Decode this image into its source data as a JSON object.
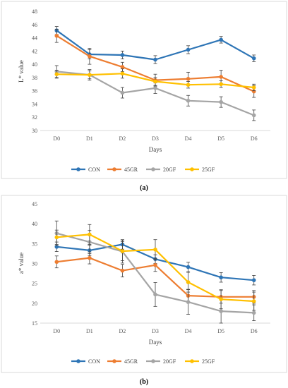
{
  "charts": [
    {
      "type": "line",
      "caption": "(a)",
      "x": [
        "D0",
        "D1",
        "D2",
        "D3",
        "D4",
        "D5",
        "D6"
      ],
      "xlabel": "Days",
      "ylabel": "L* value",
      "ylim": [
        30,
        48
      ],
      "yticks": [
        "30",
        "32",
        "34",
        "36",
        "38",
        "40",
        "42",
        "44",
        "46",
        "48"
      ],
      "grid": false,
      "legend": "bottom",
      "series": [
        {
          "name": "CON",
          "color": "#2e75b6",
          "values": [
            45.1,
            41.5,
            41.4,
            40.7,
            42.2,
            43.7,
            40.9
          ],
          "err": [
            0.6,
            0.7,
            0.6,
            0.6,
            0.6,
            0.5,
            0.5
          ]
        },
        {
          "name": "45GR",
          "color": "#ed7d31",
          "values": [
            44.3,
            41.2,
            39.6,
            37.6,
            37.8,
            38.1,
            35.9
          ],
          "err": [
            1.0,
            1.2,
            0.7,
            0.9,
            1.0,
            1.0,
            0.9
          ]
        },
        {
          "name": "20GF",
          "color": "#a5a5a5",
          "values": [
            38.9,
            38.4,
            35.7,
            36.4,
            34.5,
            34.3,
            32.3
          ],
          "err": [
            0.9,
            0.8,
            0.8,
            0.8,
            0.8,
            0.8,
            0.8
          ]
        },
        {
          "name": "25GF",
          "color": "#ffc000",
          "values": [
            38.5,
            38.4,
            38.6,
            37.4,
            36.9,
            37.0,
            36.5
          ],
          "err": [
            0.6,
            0.6,
            0.7,
            0.6,
            0.5,
            0.5,
            0.5
          ]
        }
      ]
    },
    {
      "type": "line",
      "caption": "(b)",
      "x": [
        "D0",
        "D1",
        "D2",
        "D3",
        "D4",
        "D5",
        "D6"
      ],
      "xlabel": "Days",
      "ylabel": "a* value",
      "ylim": [
        15,
        45
      ],
      "yticks": [
        "15",
        "20",
        "25",
        "30",
        "35",
        "40",
        "45"
      ],
      "grid": false,
      "legend": "bottom",
      "series": [
        {
          "name": "CON",
          "color": "#2e75b6",
          "values": [
            34.2,
            33.3,
            34.8,
            31.1,
            29.1,
            26.5,
            25.8
          ],
          "err": [
            1.2,
            1.3,
            1.2,
            1.1,
            1.2,
            1.2,
            1.2
          ]
        },
        {
          "name": "45GR",
          "color": "#ed7d31",
          "values": [
            30.4,
            31.4,
            28.2,
            29.6,
            21.9,
            21.6,
            21.6
          ],
          "err": [
            1.5,
            1.5,
            1.6,
            1.6,
            1.6,
            1.6,
            1.6
          ]
        },
        {
          "name": "20GF",
          "color": "#a5a5a5",
          "values": [
            37.6,
            35.4,
            33.0,
            22.2,
            20.3,
            18.0,
            17.6
          ],
          "err": [
            3.1,
            2.9,
            2.9,
            3.0,
            3.1,
            3.0,
            2.0
          ]
        },
        {
          "name": "25GF",
          "color": "#ffc000",
          "values": [
            36.6,
            37.3,
            33.1,
            33.5,
            25.3,
            21.0,
            20.5
          ],
          "err": [
            1.8,
            2.5,
            2.4,
            2.5,
            2.5,
            2.4,
            2.3
          ]
        }
      ]
    }
  ]
}
